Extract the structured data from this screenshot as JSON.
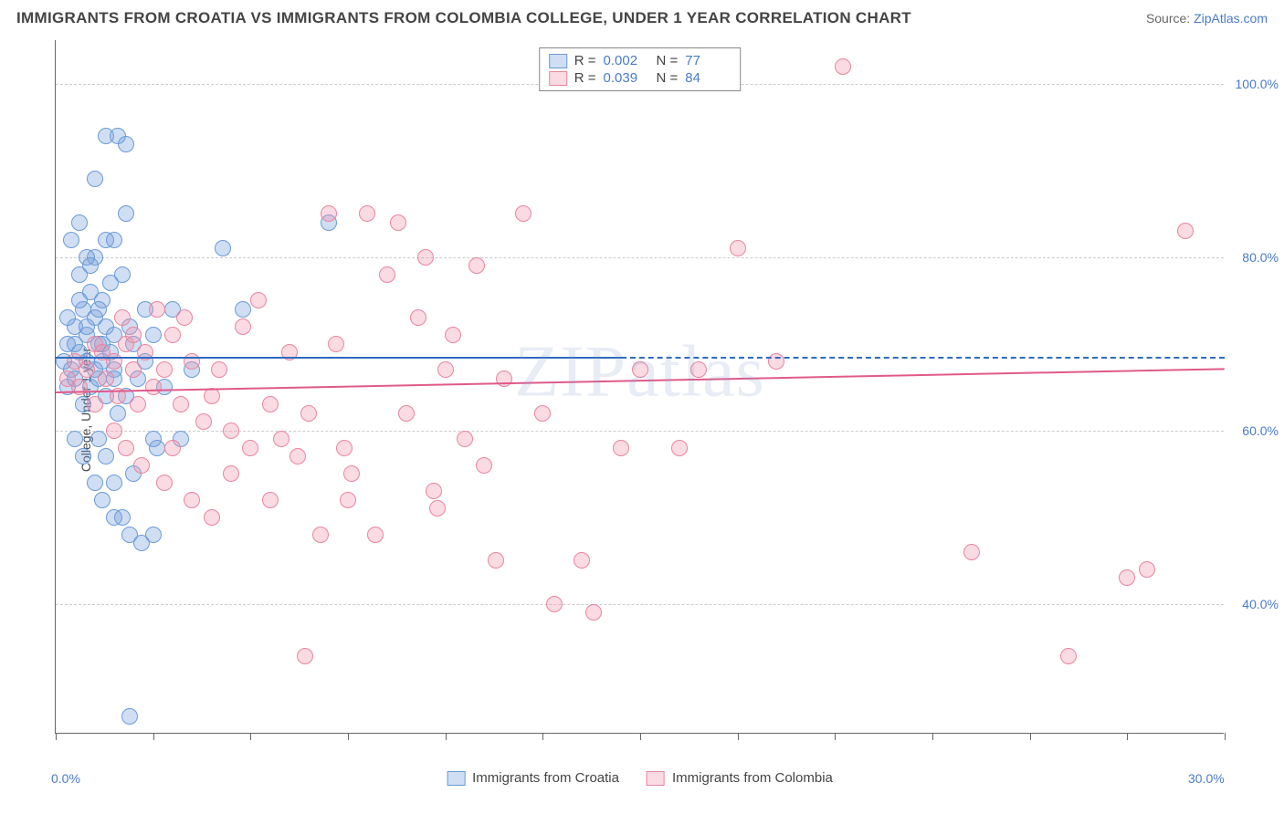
{
  "title": "IMMIGRANTS FROM CROATIA VS IMMIGRANTS FROM COLOMBIA COLLEGE, UNDER 1 YEAR CORRELATION CHART",
  "source_label": "Source: ",
  "source_name": "ZipAtlas.com",
  "ylabel": "College, Under 1 year",
  "watermark": "ZIPatlas",
  "chart": {
    "type": "scatter",
    "background_color": "#ffffff",
    "grid_color": "#cccccc",
    "axis_color": "#666666",
    "label_color": "#4a7bc8",
    "text_color": "#444444",
    "xlim": [
      0,
      30
    ],
    "ylim": [
      25,
      105
    ],
    "x_ticks": [
      0,
      2.5,
      5,
      7.5,
      10,
      12.5,
      15,
      17.5,
      20,
      22.5,
      25,
      27.5,
      30
    ],
    "x_tick_labels": [
      {
        "v": 0,
        "t": "0.0%"
      },
      {
        "v": 30,
        "t": "30.0%"
      }
    ],
    "y_gridlines": [
      40,
      60,
      80,
      100
    ],
    "y_tick_labels": [
      {
        "v": 40,
        "t": "40.0%"
      },
      {
        "v": 60,
        "t": "60.0%"
      },
      {
        "v": 80,
        "t": "80.0%"
      },
      {
        "v": 100,
        "t": "100.0%"
      }
    ],
    "marker_radius": 9,
    "marker_opacity": 0.55,
    "series": [
      {
        "name": "Immigrants from Croatia",
        "color_fill": "rgba(120, 160, 220, 0.35)",
        "color_stroke": "#6a9bd8",
        "trend_color": "#2e6bc0",
        "r": "0.002",
        "n": "77",
        "trend": {
          "x0": 0,
          "y0": 68.5,
          "x1": 14.5,
          "y1": 68.5,
          "dash_x1": 30,
          "dash_y1": 68.5
        },
        "points": [
          [
            0.2,
            68
          ],
          [
            0.3,
            70
          ],
          [
            0.3,
            65
          ],
          [
            0.4,
            67
          ],
          [
            0.5,
            72
          ],
          [
            0.5,
            66
          ],
          [
            0.6,
            78
          ],
          [
            0.6,
            69
          ],
          [
            0.7,
            74
          ],
          [
            0.7,
            63
          ],
          [
            0.8,
            71
          ],
          [
            0.8,
            68
          ],
          [
            0.9,
            76
          ],
          [
            0.9,
            65
          ],
          [
            1.0,
            73
          ],
          [
            1.0,
            80
          ],
          [
            1.1,
            70
          ],
          [
            1.1,
            66
          ],
          [
            1.2,
            68
          ],
          [
            1.2,
            75
          ],
          [
            1.3,
            72
          ],
          [
            1.3,
            64
          ],
          [
            1.4,
            69
          ],
          [
            1.4,
            77
          ],
          [
            1.5,
            71
          ],
          [
            1.5,
            67
          ],
          [
            1.0,
            89
          ],
          [
            1.3,
            94
          ],
          [
            1.6,
            94
          ],
          [
            0.6,
            84
          ],
          [
            0.8,
            80
          ],
          [
            1.8,
            93
          ],
          [
            0.5,
            59
          ],
          [
            0.7,
            57
          ],
          [
            1.0,
            54
          ],
          [
            1.2,
            52
          ],
          [
            1.5,
            50
          ],
          [
            1.9,
            48
          ],
          [
            2.2,
            47
          ],
          [
            2.6,
            58
          ],
          [
            1.6,
            62
          ],
          [
            1.8,
            64
          ],
          [
            2.0,
            70
          ],
          [
            2.1,
            66
          ],
          [
            2.3,
            68
          ],
          [
            2.5,
            71
          ],
          [
            2.8,
            65
          ],
          [
            3.0,
            74
          ],
          [
            3.2,
            59
          ],
          [
            3.5,
            67
          ],
          [
            2.0,
            55
          ],
          [
            2.3,
            74
          ],
          [
            2.5,
            59
          ],
          [
            1.7,
            78
          ],
          [
            1.9,
            72
          ],
          [
            1.8,
            85
          ],
          [
            0.4,
            82
          ],
          [
            0.6,
            75
          ],
          [
            0.9,
            79
          ],
          [
            1.1,
            74
          ],
          [
            1.3,
            82
          ],
          [
            1.5,
            82
          ],
          [
            1.1,
            59
          ],
          [
            1.3,
            57
          ],
          [
            1.5,
            54
          ],
          [
            1.7,
            50
          ],
          [
            1.9,
            27
          ],
          [
            4.3,
            81
          ],
          [
            4.8,
            74
          ],
          [
            7.0,
            84
          ],
          [
            1.5,
            66
          ],
          [
            0.3,
            73
          ],
          [
            0.5,
            70
          ],
          [
            0.8,
            72
          ],
          [
            1.0,
            67
          ],
          [
            1.2,
            70
          ],
          [
            2.5,
            48
          ]
        ]
      },
      {
        "name": "Immigrants from Colombia",
        "color_fill": "rgba(240, 150, 175, 0.35)",
        "color_stroke": "#e8869f",
        "trend_color": "#e05a8a",
        "r": "0.039",
        "n": "84",
        "trend": {
          "x0": 0,
          "y0": 64.5,
          "x1": 30,
          "y1": 67.2
        },
        "points": [
          [
            0.3,
            66
          ],
          [
            0.5,
            68
          ],
          [
            0.6,
            65
          ],
          [
            0.8,
            67
          ],
          [
            1.0,
            70
          ],
          [
            1.0,
            63
          ],
          [
            1.2,
            69
          ],
          [
            1.3,
            66
          ],
          [
            1.5,
            68
          ],
          [
            1.6,
            64
          ],
          [
            1.8,
            70
          ],
          [
            2.0,
            67
          ],
          [
            2.1,
            63
          ],
          [
            2.3,
            69
          ],
          [
            2.5,
            65
          ],
          [
            2.8,
            67
          ],
          [
            3.0,
            71
          ],
          [
            3.0,
            58
          ],
          [
            3.2,
            63
          ],
          [
            3.5,
            68
          ],
          [
            3.8,
            61
          ],
          [
            4.0,
            64
          ],
          [
            4.2,
            67
          ],
          [
            4.5,
            60
          ],
          [
            4.8,
            72
          ],
          [
            5.0,
            58
          ],
          [
            5.2,
            75
          ],
          [
            5.5,
            63
          ],
          [
            5.8,
            59
          ],
          [
            6.0,
            69
          ],
          [
            6.2,
            57
          ],
          [
            6.5,
            62
          ],
          [
            7.0,
            85
          ],
          [
            7.2,
            70
          ],
          [
            7.4,
            58
          ],
          [
            7.6,
            55
          ],
          [
            8.0,
            85
          ],
          [
            8.2,
            48
          ],
          [
            8.5,
            78
          ],
          [
            8.8,
            84
          ],
          [
            9.0,
            62
          ],
          [
            9.3,
            73
          ],
          [
            9.5,
            80
          ],
          [
            9.7,
            53
          ],
          [
            10.0,
            67
          ],
          [
            10.2,
            71
          ],
          [
            10.5,
            59
          ],
          [
            10.8,
            79
          ],
          [
            11.0,
            56
          ],
          [
            11.3,
            45
          ],
          [
            11.5,
            66
          ],
          [
            12.0,
            85
          ],
          [
            12.5,
            62
          ],
          [
            12.8,
            40
          ],
          [
            13.5,
            45
          ],
          [
            13.8,
            39
          ],
          [
            14.5,
            58
          ],
          [
            15.0,
            67
          ],
          [
            16.0,
            58
          ],
          [
            16.5,
            67
          ],
          [
            17.5,
            81
          ],
          [
            18.5,
            68
          ],
          [
            20.2,
            102
          ],
          [
            26.0,
            34
          ],
          [
            27.5,
            43
          ],
          [
            28.0,
            44
          ],
          [
            29.0,
            83
          ],
          [
            23.5,
            46
          ],
          [
            1.5,
            60
          ],
          [
            1.8,
            58
          ],
          [
            2.2,
            56
          ],
          [
            2.8,
            54
          ],
          [
            3.5,
            52
          ],
          [
            4.0,
            50
          ],
          [
            5.5,
            52
          ],
          [
            6.4,
            34
          ],
          [
            6.8,
            48
          ],
          [
            7.5,
            52
          ],
          [
            1.7,
            73
          ],
          [
            2.0,
            71
          ],
          [
            2.6,
            74
          ],
          [
            3.3,
            73
          ],
          [
            9.8,
            51
          ],
          [
            4.5,
            55
          ]
        ]
      }
    ]
  }
}
